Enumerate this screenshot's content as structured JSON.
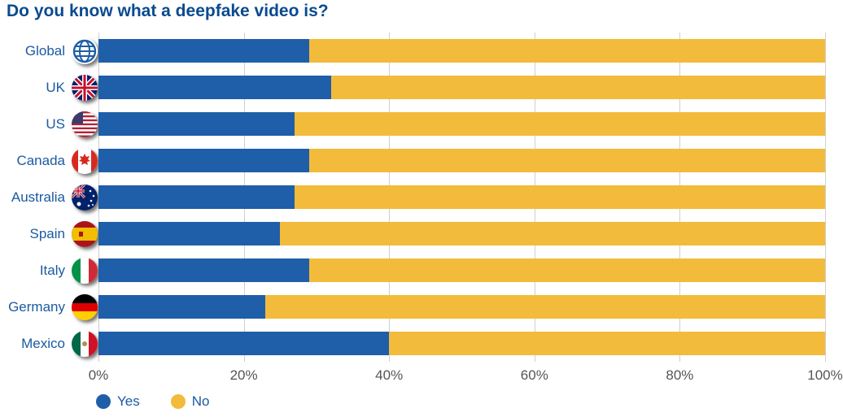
{
  "chart": {
    "type": "stacked-bar-horizontal",
    "title": "Do you know what a deepfake video is?",
    "title_color": "#0a4a8f",
    "title_fontsize": 21,
    "label_color": "#1b5aa0",
    "label_fontsize": 17,
    "axis_label_color": "#555555",
    "axis_label_fontsize": 17,
    "grid_color": "#cfcfcf",
    "background_color": "#ffffff",
    "x_max": 100,
    "x_tick_step": 20,
    "ticks": [
      {
        "value": 0,
        "label": "0%"
      },
      {
        "value": 20,
        "label": "20%"
      },
      {
        "value": 40,
        "label": "40%"
      },
      {
        "value": 60,
        "label": "60%"
      },
      {
        "value": 80,
        "label": "80%"
      },
      {
        "value": 100,
        "label": "100%"
      }
    ],
    "series": {
      "yes": {
        "label": "Yes",
        "color": "#1f5ea8"
      },
      "no": {
        "label": "No",
        "color": "#f3bb3b"
      }
    },
    "rows": [
      {
        "label": "Global",
        "flag": "globe",
        "yes": 29,
        "no": 71
      },
      {
        "label": "UK",
        "flag": "uk",
        "yes": 32,
        "no": 68
      },
      {
        "label": "US",
        "flag": "us",
        "yes": 27,
        "no": 73
      },
      {
        "label": "Canada",
        "flag": "canada",
        "yes": 29,
        "no": 71
      },
      {
        "label": "Australia",
        "flag": "australia",
        "yes": 27,
        "no": 73
      },
      {
        "label": "Spain",
        "flag": "spain",
        "yes": 25,
        "no": 75
      },
      {
        "label": "Italy",
        "flag": "italy",
        "yes": 29,
        "no": 71
      },
      {
        "label": "Germany",
        "flag": "germany",
        "yes": 23,
        "no": 77
      },
      {
        "label": "Mexico",
        "flag": "mexico",
        "yes": 40,
        "no": 60
      }
    ]
  }
}
